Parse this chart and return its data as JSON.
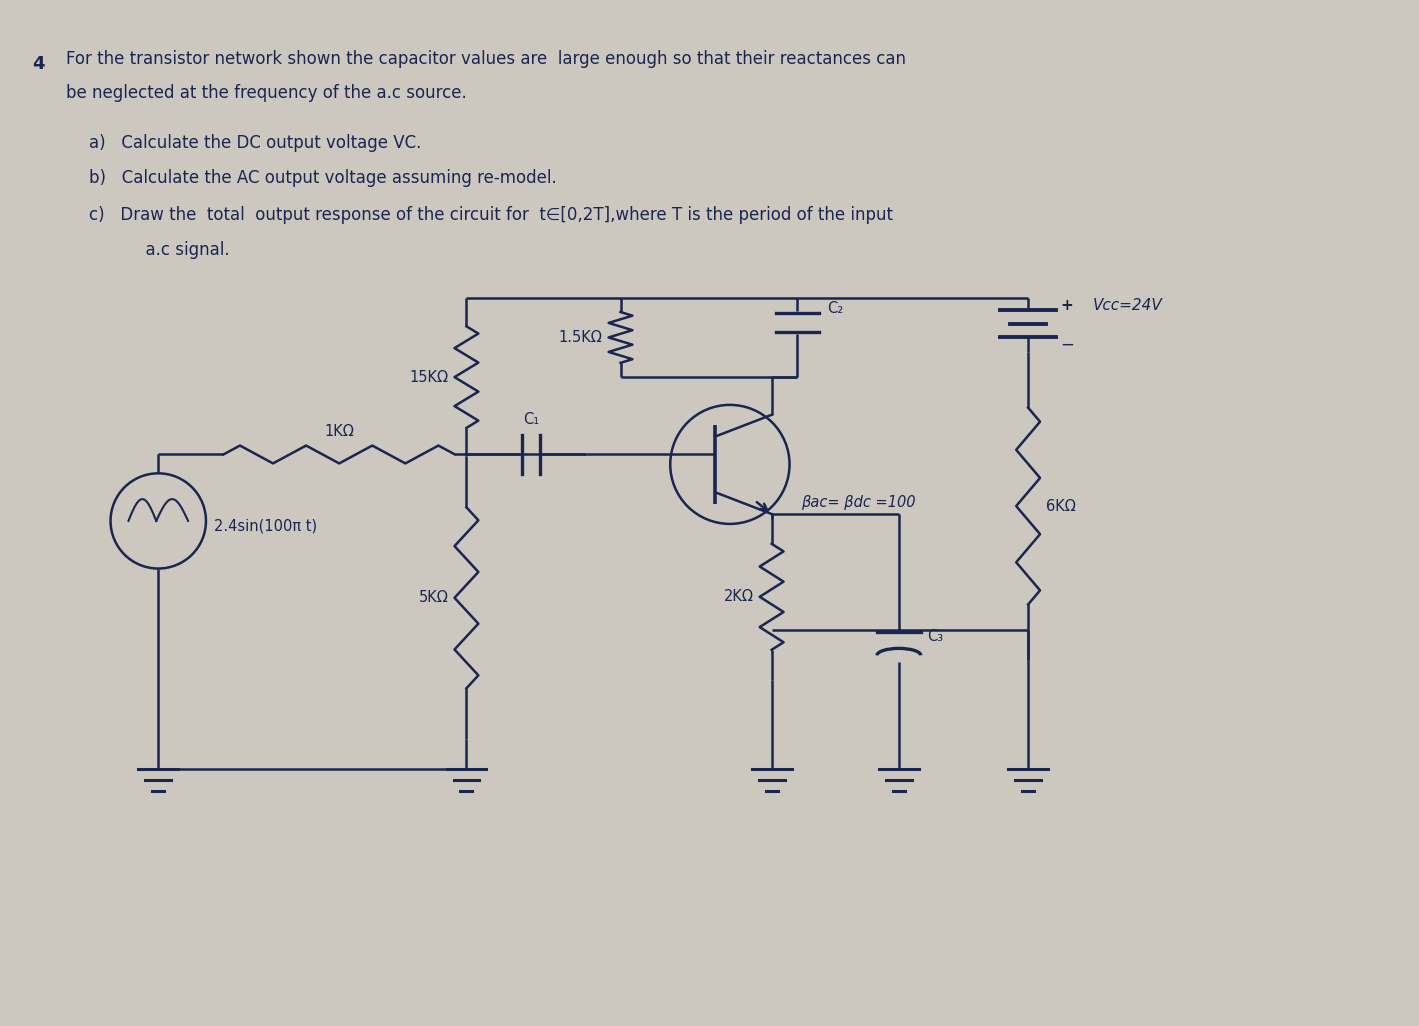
{
  "bg_color": "#cdc8bf",
  "text_color": "#1a2550",
  "line_color": "#1a2550",
  "circuit": {
    "vcc_label": "Vcc=24V",
    "r1_label": "15KΩ",
    "r2_label": "1.5KΩ",
    "rc_label": "6KΩ",
    "re_label": "2KΩ",
    "r_bias_label": "5KΩ",
    "r_in_label": "1KΩ",
    "c1_label": "C₁",
    "c2_label": "C₂",
    "c3_label": "C₃",
    "beta_label": "βac= βdc =100",
    "source_label": "2.4sin(100π t)"
  },
  "text": {
    "q_num": "4",
    "line1": "For the transistor network shown the capacitor values are  large enough so that their reactances can",
    "line2": "be neglected at the frequency of the a.c source.",
    "a": "a)   Calculate the DC output voltage VC.",
    "b": "b)   Calculate the AC output voltage assuming re-model.",
    "c1": "c)   Draw the  total  output response of the circuit for  t∈[0,2T],where T is the period of the input",
    "c2": "      a.c signal."
  }
}
